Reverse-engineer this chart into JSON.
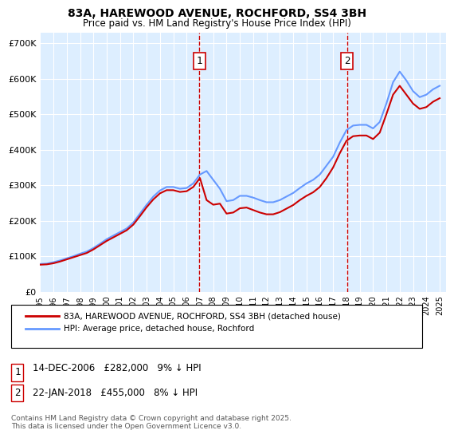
{
  "title": "83A, HAREWOOD AVENUE, ROCHFORD, SS4 3BH",
  "subtitle": "Price paid vs. HM Land Registry's House Price Index (HPI)",
  "ylabel_ticks": [
    "£0",
    "£100K",
    "£200K",
    "£300K",
    "£400K",
    "£500K",
    "£600K",
    "£700K"
  ],
  "ylim": [
    0,
    730000
  ],
  "xlim_start": 1995.0,
  "xlim_end": 2025.5,
  "sale1_date": 2006.95,
  "sale1_price": 282000,
  "sale1_label": "1",
  "sale1_note": "14-DEC-2006   £282,000   9% ↓ HPI",
  "sale2_date": 2018.05,
  "sale2_price": 455000,
  "sale2_label": "2",
  "sale2_note": "22-JAN-2018   £455,000   8% ↓ HPI",
  "hpi_color": "#6699ff",
  "price_color": "#cc0000",
  "vline_color": "#cc0000",
  "marker_box_color": "#cc0000",
  "bg_color": "#ddeeff",
  "grid_color": "#ffffff",
  "legend_label_price": "83A, HAREWOOD AVENUE, ROCHFORD, SS4 3BH (detached house)",
  "legend_label_hpi": "HPI: Average price, detached house, Rochford",
  "footnote": "Contains HM Land Registry data © Crown copyright and database right 2025.\nThis data is licensed under the Open Government Licence v3.0.",
  "hpi_years": [
    1995,
    1995.5,
    1996,
    1996.5,
    1997,
    1997.5,
    1998,
    1998.5,
    1999,
    1999.5,
    2000,
    2000.5,
    2001,
    2001.5,
    2002,
    2002.5,
    2003,
    2003.5,
    2004,
    2004.5,
    2005,
    2005.5,
    2006,
    2006.5,
    2007,
    2007.5,
    2008,
    2008.5,
    2009,
    2009.5,
    2010,
    2010.5,
    2011,
    2011.5,
    2012,
    2012.5,
    2013,
    2013.5,
    2014,
    2014.5,
    2015,
    2015.5,
    2016,
    2016.5,
    2017,
    2017.5,
    2018,
    2018.5,
    2019,
    2019.5,
    2020,
    2020.5,
    2021,
    2021.5,
    2022,
    2022.5,
    2023,
    2023.5,
    2024,
    2024.5,
    2025
  ],
  "hpi_values": [
    78000,
    79000,
    83000,
    88000,
    94000,
    100000,
    107000,
    113000,
    123000,
    135000,
    148000,
    158000,
    168000,
    178000,
    195000,
    220000,
    245000,
    268000,
    285000,
    295000,
    295000,
    290000,
    292000,
    305000,
    330000,
    340000,
    315000,
    290000,
    255000,
    258000,
    270000,
    270000,
    265000,
    258000,
    252000,
    252000,
    258000,
    268000,
    278000,
    292000,
    305000,
    315000,
    330000,
    355000,
    380000,
    420000,
    455000,
    468000,
    470000,
    470000,
    460000,
    478000,
    530000,
    590000,
    620000,
    595000,
    565000,
    548000,
    555000,
    570000,
    580000
  ],
  "price_years": [
    1995,
    1995.5,
    1996,
    1996.5,
    1997,
    1997.5,
    1998,
    1998.5,
    1999,
    1999.5,
    2000,
    2000.5,
    2001,
    2001.5,
    2002,
    2002.5,
    2003,
    2003.5,
    2004,
    2004.5,
    2005,
    2005.5,
    2006,
    2006.5,
    2007,
    2007.5,
    2008,
    2008.5,
    2009,
    2009.5,
    2010,
    2010.5,
    2011,
    2011.5,
    2012,
    2012.5,
    2013,
    2013.5,
    2014,
    2014.5,
    2015,
    2015.5,
    2016,
    2016.5,
    2017,
    2017.5,
    2018,
    2018.5,
    2019,
    2019.5,
    2020,
    2020.5,
    2021,
    2021.5,
    2022,
    2022.5,
    2023,
    2023.5,
    2024,
    2024.5,
    2025
  ],
  "price_values": [
    76000,
    77000,
    80000,
    85000,
    91000,
    97000,
    103000,
    109000,
    119000,
    131000,
    143000,
    153000,
    163000,
    173000,
    189000,
    213000,
    238000,
    260000,
    277000,
    286000,
    286000,
    281000,
    283000,
    295000,
    320000,
    258000,
    245000,
    248000,
    220000,
    223000,
    235000,
    237000,
    230000,
    223000,
    218000,
    218000,
    224000,
    234000,
    244000,
    258000,
    270000,
    280000,
    295000,
    320000,
    350000,
    390000,
    425000,
    438000,
    440000,
    440000,
    430000,
    448000,
    500000,
    555000,
    580000,
    555000,
    530000,
    515000,
    520000,
    535000,
    545000
  ]
}
